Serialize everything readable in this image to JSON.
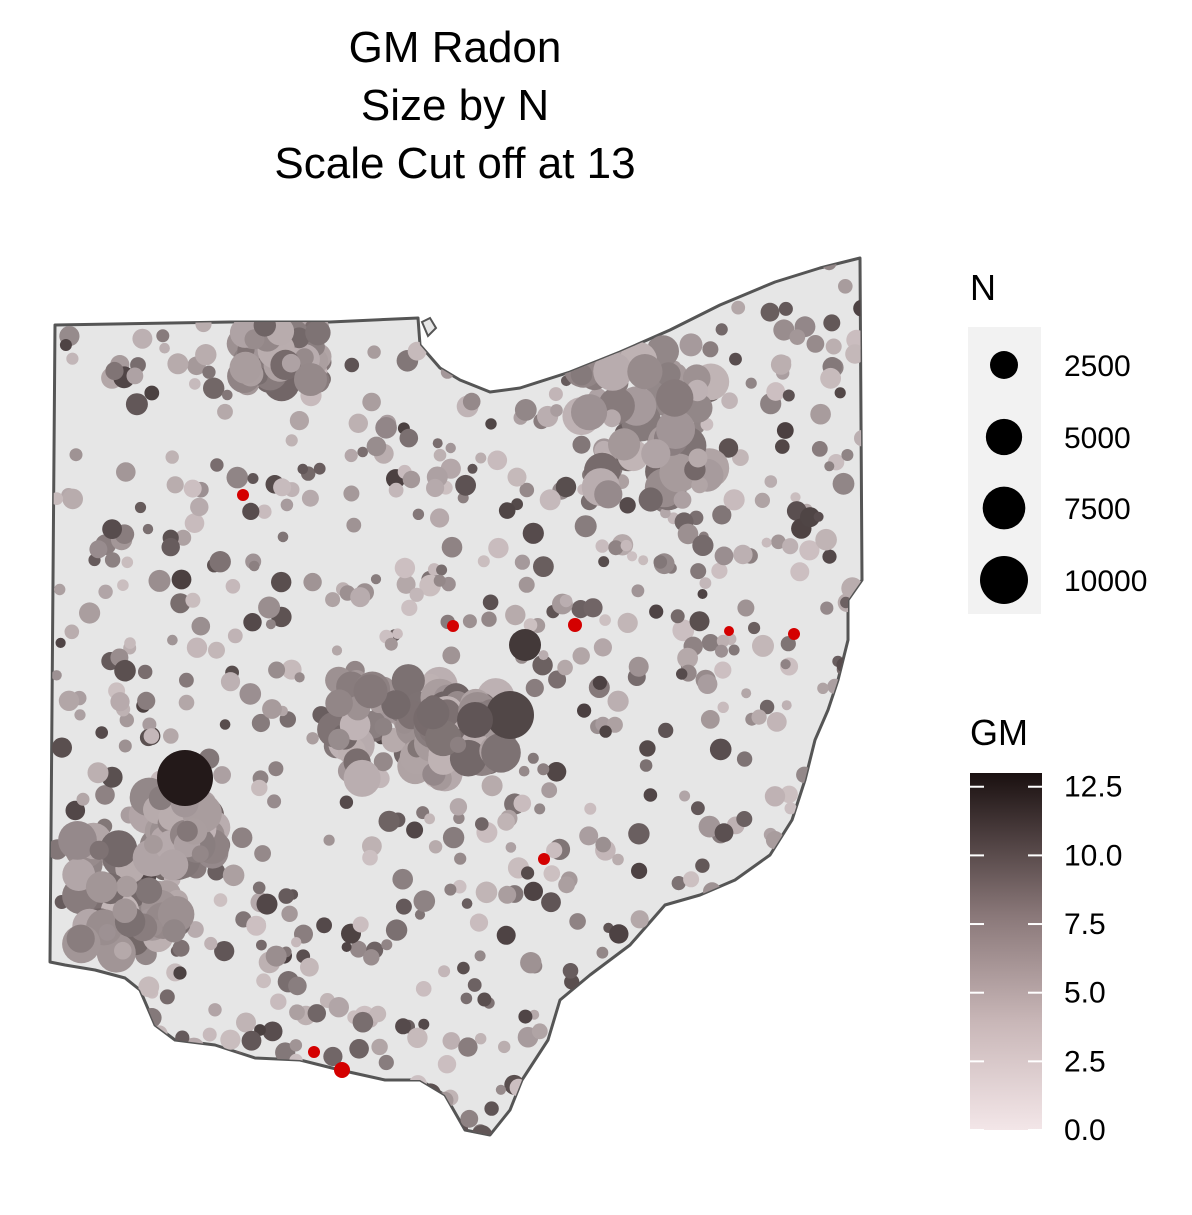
{
  "title_lines": [
    "GM Radon",
    "Size by N",
    "Scale Cut off at 13"
  ],
  "size_legend": {
    "title": "N",
    "breaks": [
      {
        "label": "2500",
        "value": 2500
      },
      {
        "label": "5000",
        "value": 5000
      },
      {
        "label": "7500",
        "value": 7500
      },
      {
        "label": "10000",
        "value": 10000
      }
    ]
  },
  "color_legend": {
    "title": "GM",
    "min": 0,
    "max": 13,
    "ticks": [
      {
        "label": "0.0",
        "value": 0
      },
      {
        "label": "2.5",
        "value": 2.5
      },
      {
        "label": "5.0",
        "value": 5
      },
      {
        "label": "7.5",
        "value": 7.5
      },
      {
        "label": "10.0",
        "value": 10
      },
      {
        "label": "12.5",
        "value": 12.5
      }
    ],
    "low_color": "#f3e6e8",
    "high_color": "#1a1010"
  },
  "colors": {
    "state_fill": "#e6e6e6",
    "state_outline": "#555555",
    "out_of_range": "#d40000",
    "legend_panel": "#f2f2f2"
  },
  "cutoff_value": 13
}
